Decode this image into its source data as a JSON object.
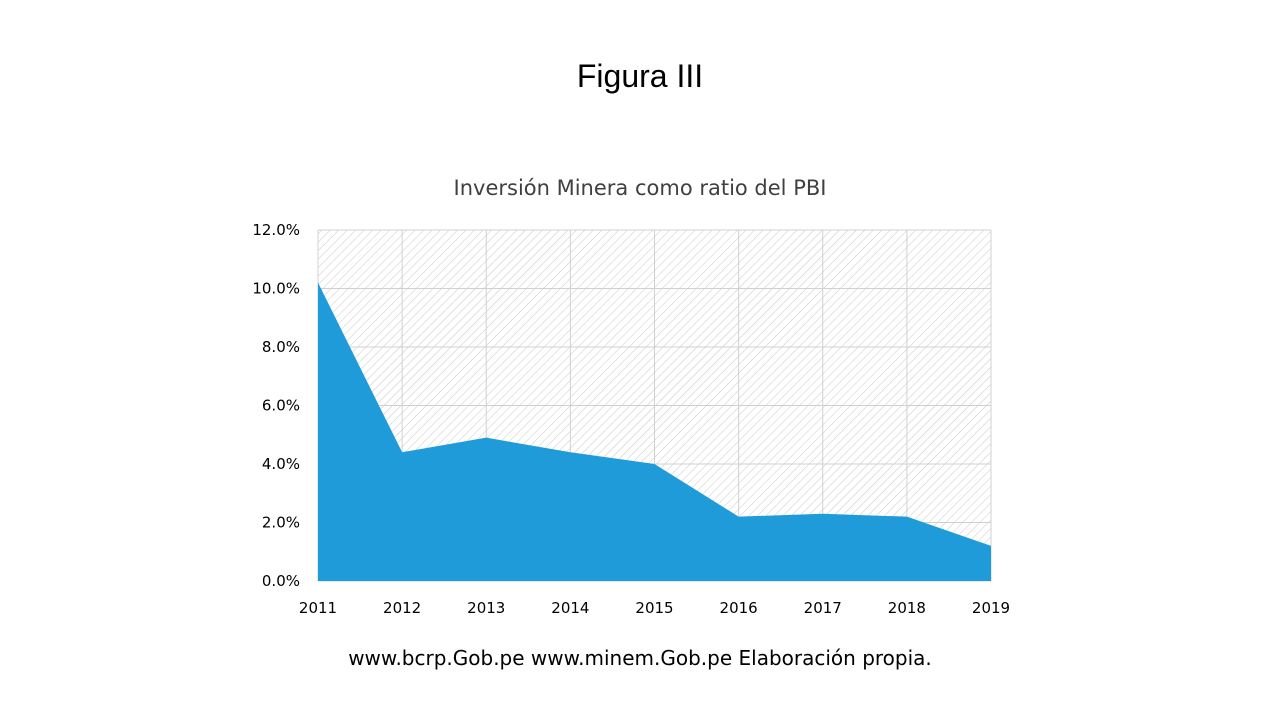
{
  "slide": {
    "title": "Figura III",
    "source_note": "www.bcrp.Gob.pe www.minem.Gob.pe Elaboración propia."
  },
  "chart_data": {
    "type": "area",
    "title": "Inversión Minera como ratio del PBI",
    "x": [
      "2011",
      "2012",
      "2013",
      "2014",
      "2015",
      "2016",
      "2017",
      "2018",
      "2019"
    ],
    "series": [
      {
        "values": [
          10.2,
          4.4,
          4.9,
          4.4,
          4.0,
          2.2,
          2.3,
          2.2,
          1.2
        ]
      }
    ],
    "ylim": [
      0,
      12
    ],
    "yticks": [
      0,
      2,
      4,
      6,
      8,
      10,
      12
    ],
    "ytick_labels": [
      "0.0%",
      "2.0%",
      "4.0%",
      "6.0%",
      "8.0%",
      "10.0%",
      "12.0%"
    ],
    "grid": true,
    "background": "hatched",
    "colors": {
      "fill": "#1f9bd9",
      "grid": "#d0d0d0",
      "hatch": "#c8c8c8"
    }
  }
}
